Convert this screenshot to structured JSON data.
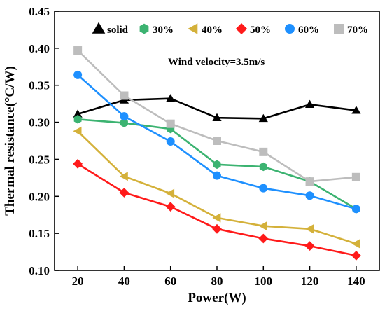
{
  "chart_data": {
    "type": "line",
    "xlabel": "Power(W)",
    "ylabel": "Thermal resistance(°C/W)",
    "xlim": [
      10,
      150
    ],
    "ylim": [
      0.1,
      0.45
    ],
    "xticks": [
      20,
      40,
      60,
      80,
      100,
      120,
      140
    ],
    "yticks": [
      0.1,
      0.15,
      0.2,
      0.25,
      0.3,
      0.35,
      0.4,
      0.45
    ],
    "xtick_labels": [
      "20",
      "40",
      "60",
      "80",
      "100",
      "120",
      "140"
    ],
    "ytick_labels": [
      "0.10",
      "0.15",
      "0.20",
      "0.25",
      "0.30",
      "0.35",
      "0.40",
      "0.45"
    ],
    "annotation": "Wind velocity=3.5m/s",
    "legend_position": "top",
    "grid": false,
    "x": [
      20,
      40,
      60,
      80,
      100,
      120,
      140
    ],
    "series": [
      {
        "name": "solid",
        "color": "#000000",
        "marker": "triangle-up",
        "values": [
          0.311,
          0.33,
          0.332,
          0.306,
          0.305,
          0.324,
          0.316
        ]
      },
      {
        "name": "30%",
        "color": "#3cb371",
        "marker": "hexagon",
        "values": [
          0.304,
          0.299,
          0.291,
          0.243,
          0.24,
          0.22,
          0.183
        ]
      },
      {
        "name": "40%",
        "color": "#d4b13a",
        "marker": "triangle-left",
        "values": [
          0.288,
          0.227,
          0.204,
          0.171,
          0.16,
          0.156,
          0.136
        ]
      },
      {
        "name": "50%",
        "color": "#ff1a1a",
        "marker": "diamond",
        "values": [
          0.244,
          0.205,
          0.186,
          0.156,
          0.143,
          0.133,
          0.12
        ]
      },
      {
        "name": "60%",
        "color": "#1e90ff",
        "marker": "circle",
        "values": [
          0.364,
          0.308,
          0.274,
          0.228,
          0.211,
          0.201,
          0.183
        ]
      },
      {
        "name": "70%",
        "color": "#bdbdbd",
        "marker": "square",
        "values": [
          0.397,
          0.336,
          0.298,
          0.275,
          0.26,
          0.22,
          0.226
        ]
      }
    ]
  }
}
